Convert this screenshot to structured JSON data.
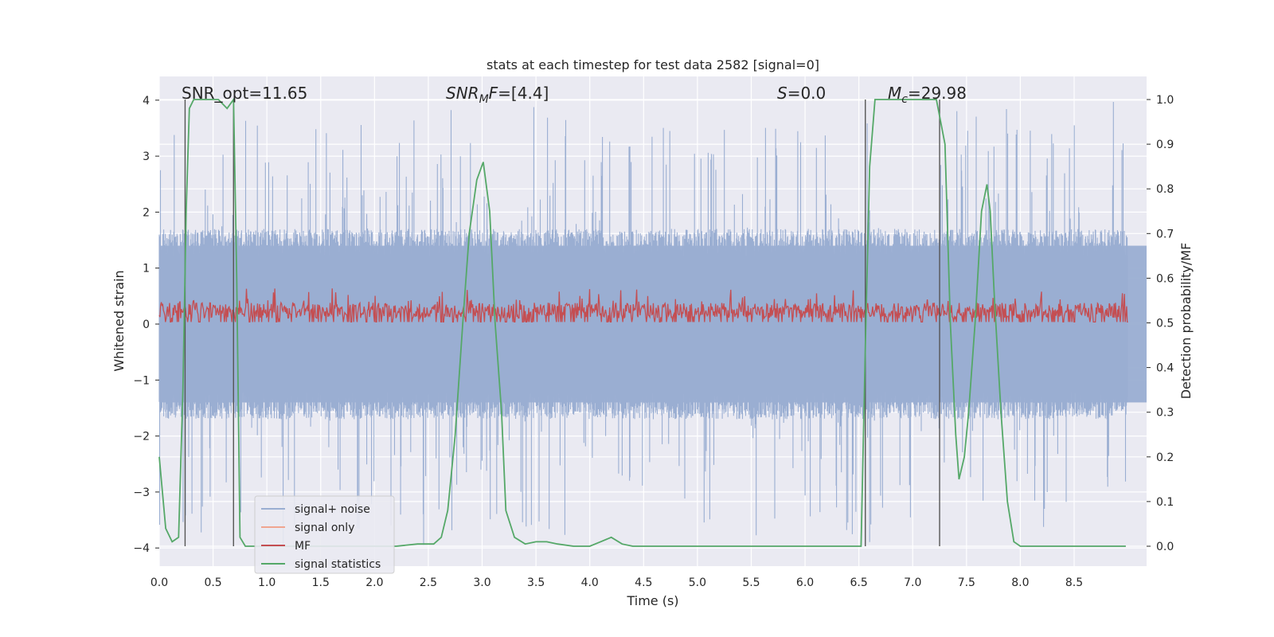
{
  "chart_data": {
    "type": "line",
    "title": "stats at each timestep for test data 2582 [signal=0]",
    "xlabel": "Time (s)",
    "ylabel": "Whitened strain",
    "y2label": "Detection probability/MF",
    "xlim": [
      0,
      9.0
    ],
    "ylim": [
      -4.35,
      4.4
    ],
    "y2lim": [
      -0.048,
      1.036
    ],
    "xticks": [
      0.0,
      0.5,
      1.0,
      1.5,
      2.0,
      2.5,
      3.0,
      3.5,
      4.0,
      4.5,
      5.0,
      5.5,
      6.0,
      6.5,
      7.0,
      7.5,
      8.0,
      8.5
    ],
    "xtick_labels": [
      "0.0",
      "0.5",
      "1.0",
      "1.5",
      "2.0",
      "2.5",
      "3.0",
      "3.5",
      "4.0",
      "4.5",
      "5.0",
      "5.5",
      "6.0",
      "6.5",
      "7.0",
      "7.5",
      "8.0",
      "8.5"
    ],
    "yticks": [
      -4,
      -3,
      -2,
      -1,
      0,
      1,
      2,
      3,
      4
    ],
    "ytick_labels": [
      "−4",
      "−3",
      "−2",
      "−1",
      "0",
      "1",
      "2",
      "3",
      "4"
    ],
    "y2ticks": [
      0.0,
      0.1,
      0.2,
      0.3,
      0.4,
      0.5,
      0.6,
      0.7,
      0.8,
      0.9,
      1.0
    ],
    "y2tick_labels": [
      "0.0",
      "0.1",
      "0.2",
      "0.3",
      "0.4",
      "0.5",
      "0.6",
      "0.7",
      "0.8",
      "0.9",
      "1.0"
    ],
    "grid": true,
    "legend_position": "lower-left",
    "annotations": [
      {
        "id": "snr-opt",
        "text": "SNR_opt=11.65",
        "x": 0.2,
        "y": 4.0
      },
      {
        "id": "snr-mf",
        "text": "SNR_MF=[4.4]",
        "x": 2.6,
        "y": 4.0
      },
      {
        "id": "s",
        "text": "S=0.0",
        "x": 5.6,
        "y": 4.0
      },
      {
        "id": "mc",
        "text": "M_c=29.98",
        "x": 6.7,
        "y": 4.0
      }
    ],
    "vlines": [
      0.24,
      0.69,
      6.56,
      7.25
    ],
    "series": [
      {
        "name": "signal+ noise",
        "axis": "left",
        "color": "#9aaed2",
        "description_values": "noise envelope, typical amplitude about 1.5, peaks up to about 4",
        "envelope": {
          "x": [
            0.0,
            9.0
          ],
          "upper_typical": 1.5,
          "lower_typical": -1.5,
          "peak_max": 4.0,
          "peak_min": -4.0
        }
      },
      {
        "name": "signal only",
        "axis": "left",
        "color": "#f0a58f",
        "x": [],
        "y": []
      },
      {
        "name": "MF",
        "axis": "right",
        "color": "#c44e52",
        "baseline": 0.5,
        "typical_max": 0.56,
        "peak_max": 0.6
      },
      {
        "name": "signal statistics",
        "axis": "right",
        "color": "#55a868",
        "x": [
          0.0,
          0.06,
          0.12,
          0.18,
          0.22,
          0.25,
          0.28,
          0.32,
          0.36,
          0.45,
          0.55,
          0.63,
          0.69,
          0.72,
          0.75,
          0.8,
          0.9,
          1.2,
          1.6,
          2.0,
          2.2,
          2.4,
          2.55,
          2.62,
          2.68,
          2.75,
          2.82,
          2.88,
          2.95,
          3.01,
          3.07,
          3.12,
          3.18,
          3.22,
          3.3,
          3.4,
          3.5,
          3.6,
          3.7,
          3.85,
          4.0,
          4.1,
          4.2,
          4.3,
          4.4,
          5.0,
          6.0,
          6.52,
          6.56,
          6.6,
          6.65,
          6.7,
          7.0,
          7.22,
          7.3,
          7.35,
          7.4,
          7.43,
          7.48,
          7.52,
          7.58,
          7.64,
          7.69,
          7.72,
          7.76,
          7.82,
          7.88,
          7.94,
          8.0,
          8.2,
          8.5,
          8.8,
          8.98
        ],
        "y": [
          0.2,
          0.04,
          0.01,
          0.02,
          0.35,
          0.75,
          0.98,
          1.0,
          1.0,
          1.0,
          1.0,
          0.98,
          1.0,
          0.6,
          0.02,
          0.0,
          0.0,
          0.0,
          0.0,
          0.0,
          0.0,
          0.005,
          0.005,
          0.02,
          0.08,
          0.25,
          0.5,
          0.7,
          0.82,
          0.86,
          0.75,
          0.5,
          0.3,
          0.08,
          0.02,
          0.005,
          0.01,
          0.01,
          0.005,
          0.0,
          0.0,
          0.01,
          0.02,
          0.005,
          0.0,
          0.0,
          0.0,
          0.0,
          0.45,
          0.85,
          1.0,
          1.0,
          1.0,
          1.0,
          0.9,
          0.5,
          0.25,
          0.15,
          0.2,
          0.3,
          0.5,
          0.75,
          0.81,
          0.75,
          0.55,
          0.3,
          0.1,
          0.01,
          0.0,
          0.0,
          0.0,
          0.0,
          0.0
        ]
      }
    ]
  }
}
